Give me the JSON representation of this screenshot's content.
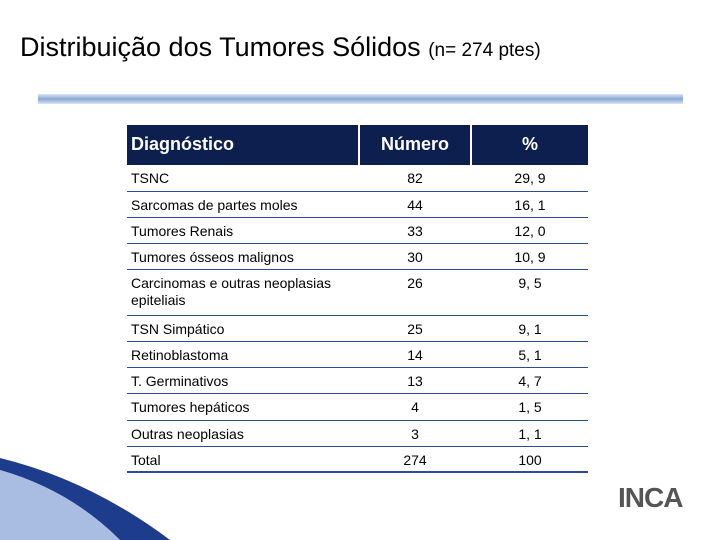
{
  "header": {
    "title": "Distribuição dos Tumores Sólidos",
    "subtitle": "(n= 274 ptes)"
  },
  "table": {
    "columns": [
      "Diagnóstico",
      "Número",
      "%"
    ],
    "rows": [
      [
        "TSNC",
        "82",
        "29, 9"
      ],
      [
        "Sarcomas de partes moles",
        "44",
        "16, 1"
      ],
      [
        "Tumores Renais",
        "33",
        "12, 0"
      ],
      [
        "Tumores ósseos malignos",
        "30",
        "10, 9"
      ],
      [
        "Carcinomas e outras neoplasias epiteliais",
        "26",
        "9, 5"
      ],
      [
        "TSN Simpático",
        "25",
        "9, 1"
      ],
      [
        "Retinoblastoma",
        "14",
        "5, 1"
      ],
      [
        "T. Germinativos",
        "13",
        "4, 7"
      ],
      [
        "Tumores hepáticos",
        "4",
        "1, 5"
      ],
      [
        "Outras neoplasias",
        "3",
        "1, 1"
      ],
      [
        "Total",
        "274",
        "100"
      ]
    ]
  },
  "logo": {
    "text": "INCA"
  }
}
